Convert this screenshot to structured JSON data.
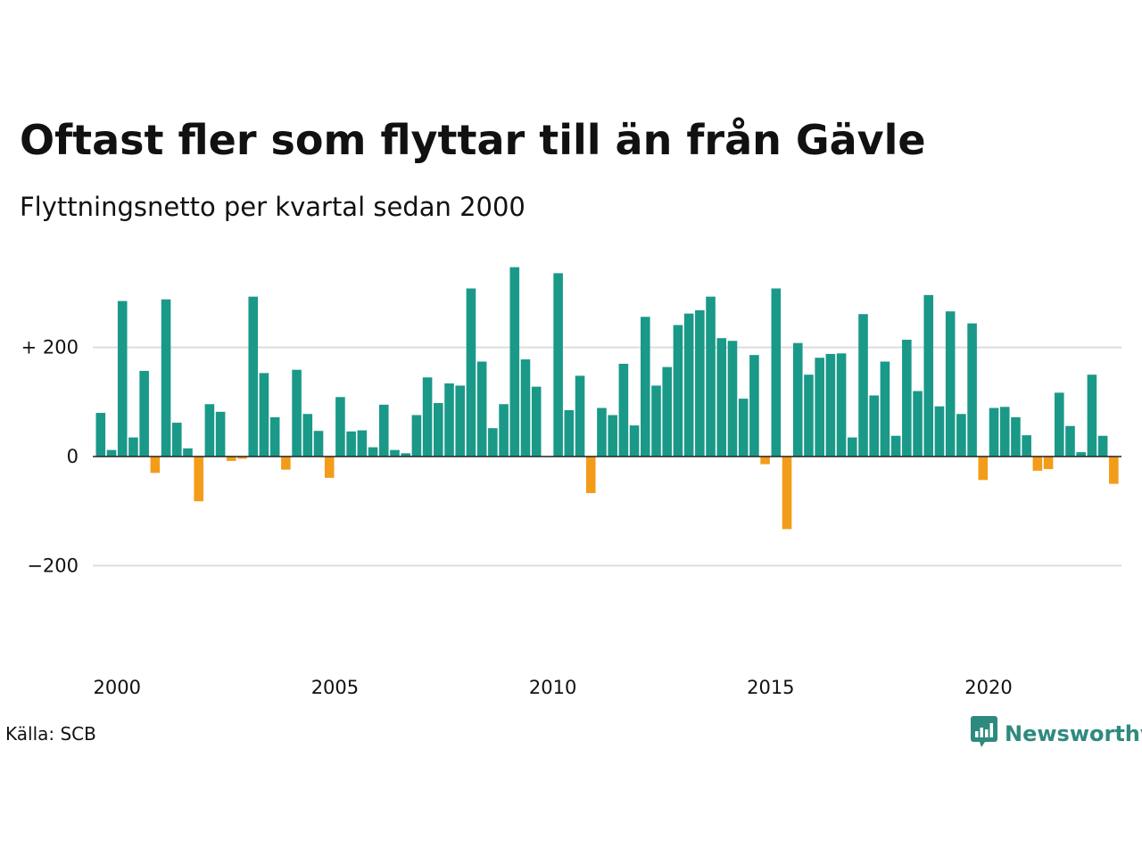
{
  "title": "Oftast fler som flyttar till än från Gävle",
  "subtitle": "Flyttningsnetto per kvartal sedan 2000",
  "source": "Källa: SCB",
  "brand": {
    "name": "Newsworthy",
    "icon": "newsworthy-logo-icon"
  },
  "colors": {
    "positive": "#1a9988",
    "negative": "#f39c1a",
    "grid": "#dddddd",
    "zero": "#222222"
  },
  "chart_data": {
    "type": "bar",
    "x_start_year": 2000,
    "period": "quarter",
    "ylim": [
      -320,
      350
    ],
    "y_ticks": [
      200,
      0,
      -200
    ],
    "y_tick_labels": [
      "+ 200",
      "0",
      "−200"
    ],
    "x_ticks": [
      2000,
      2005,
      2010,
      2015,
      2020
    ],
    "x_tick_labels": [
      "2000",
      "2005",
      "2010",
      "2015",
      "2020"
    ],
    "grid": true,
    "values": [
      80,
      12,
      285,
      35,
      157,
      -30,
      288,
      62,
      15,
      -82,
      96,
      82,
      -8,
      -4,
      293,
      153,
      72,
      -24,
      159,
      78,
      47,
      -39,
      109,
      46,
      48,
      17,
      95,
      12,
      6,
      76,
      145,
      98,
      134,
      130,
      308,
      174,
      52,
      96,
      347,
      178,
      128,
      0,
      336,
      85,
      148,
      -67,
      89,
      76,
      170,
      57,
      256,
      130,
      164,
      241,
      262,
      268,
      293,
      217,
      212,
      106,
      186,
      -14,
      308,
      -133,
      208,
      150,
      181,
      188,
      189,
      35,
      261,
      112,
      174,
      38,
      214,
      120,
      296,
      92,
      266,
      78,
      244,
      -43,
      89,
      91,
      72,
      39,
      -26,
      -23,
      117,
      56,
      8,
      150,
      38,
      -50
    ]
  }
}
